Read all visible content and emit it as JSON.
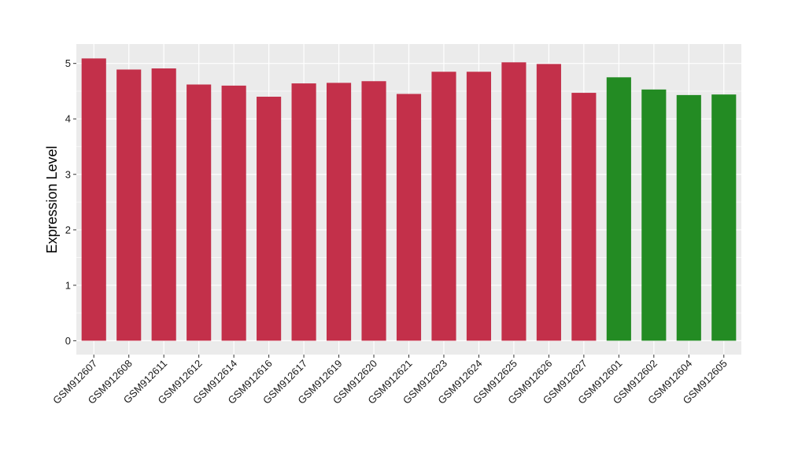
{
  "chart_data": {
    "type": "bar",
    "title": "",
    "xlabel": "",
    "ylabel": "Expression Level",
    "ylim": [
      -0.25,
      5.35
    ],
    "yticks": [
      0,
      1,
      2,
      3,
      4,
      5
    ],
    "grid": true,
    "legend": "none",
    "colors": {
      "group_a": "#c3304a",
      "group_b": "#238b23",
      "panel": "#ebebeb",
      "grid": "#ffffff"
    },
    "categories": [
      "GSM912607",
      "GSM912608",
      "GSM912611",
      "GSM912612",
      "GSM912614",
      "GSM912616",
      "GSM912617",
      "GSM912619",
      "GSM912620",
      "GSM912621",
      "GSM912623",
      "GSM912624",
      "GSM912625",
      "GSM912626",
      "GSM912627",
      "GSM912601",
      "GSM912602",
      "GSM912604",
      "GSM912605"
    ],
    "values": [
      5.09,
      4.89,
      4.91,
      4.62,
      4.6,
      4.4,
      4.64,
      4.65,
      4.68,
      4.45,
      4.85,
      4.85,
      5.02,
      4.99,
      4.47,
      4.75,
      4.53,
      4.43,
      4.44
    ],
    "groups": [
      "a",
      "a",
      "a",
      "a",
      "a",
      "a",
      "a",
      "a",
      "a",
      "a",
      "a",
      "a",
      "a",
      "a",
      "a",
      "b",
      "b",
      "b",
      "b"
    ]
  }
}
